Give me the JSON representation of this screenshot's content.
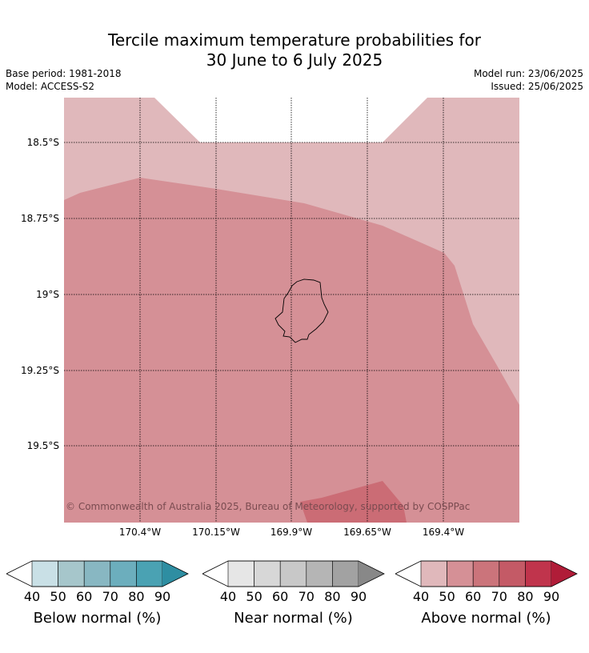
{
  "title_line1": "Tercile maximum temperature probabilities for",
  "title_line2": "30 June to 6 July 2025",
  "base_period": "Base period: 1981-2018",
  "model": "Model: ACCESS-S2",
  "model_run": "Model run: 23/06/2025",
  "issued": "Issued: 25/06/2025",
  "copyright": "© Commonwealth of Australia 2025, Bureau of Meteorology, supported by COSPPac",
  "lat_labels": [
    "18.5°S",
    "18.75°S",
    "19°S",
    "19.25°S",
    "19.5°S"
  ],
  "lon_labels": [
    "170.4°W",
    "170.15°W",
    "169.9°W",
    "169.65°W",
    "169.4°W"
  ],
  "colors": {
    "above_40_50": "#e0b8bb",
    "above_50_60": "#d59096",
    "above_60_70": "#cb6c75",
    "land_outline": "#000000"
  },
  "colorbars": [
    {
      "title": "Below normal (%)",
      "ticks": [
        "40",
        "50",
        "60",
        "70",
        "80",
        "90"
      ],
      "colors": [
        "#c9e0e6",
        "#a6c6cb",
        "#88b7c2",
        "#6caebd",
        "#4aa2b3",
        "#2e8ea2"
      ]
    },
    {
      "title": "Near normal (%)",
      "ticks": [
        "40",
        "50",
        "60",
        "70",
        "80",
        "90"
      ],
      "colors": [
        "#e6e6e6",
        "#d7d7d7",
        "#c8c8c8",
        "#b5b5b5",
        "#a2a2a2",
        "#888888"
      ]
    },
    {
      "title": "Above normal (%)",
      "ticks": [
        "40",
        "50",
        "60",
        "70",
        "80",
        "90"
      ],
      "colors": [
        "#e0b8bb",
        "#d59096",
        "#cb747b",
        "#c45a66",
        "#c0344c",
        "#b01c38"
      ]
    }
  ]
}
